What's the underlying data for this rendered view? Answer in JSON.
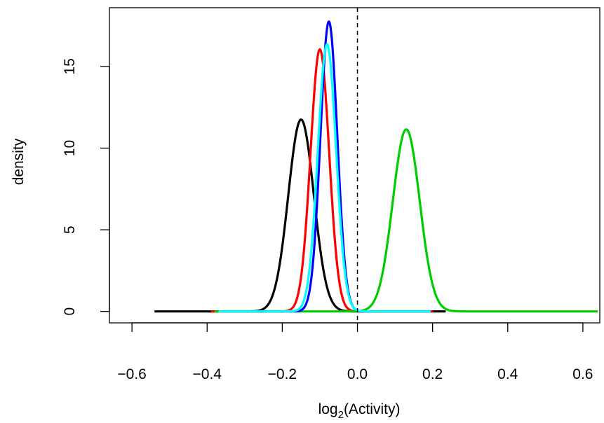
{
  "chart_data": {
    "type": "line",
    "title": "",
    "xlabel_base": "log",
    "xlabel_sub": "2",
    "xlabel_rest": "(Activity)",
    "ylabel": "density",
    "xlim": [
      -0.66,
      0.645
    ],
    "ylim": [
      -0.7,
      18.6
    ],
    "x_ticks": [
      -0.6,
      -0.4,
      -0.2,
      0.0,
      0.2,
      0.4,
      0.6
    ],
    "x_tick_labels": [
      "−0.6",
      "−0.4",
      "−0.2",
      "0.0",
      "0.2",
      "0.4",
      "0.6"
    ],
    "y_ticks": [
      0,
      5,
      10,
      15
    ],
    "y_tick_labels": [
      "0",
      "5",
      "10",
      "15"
    ],
    "reference_line": {
      "x": 0.0,
      "style": "dashed",
      "color": "#000000"
    },
    "grid": false,
    "legend": "none",
    "series": [
      {
        "color": "#000000",
        "mean": -0.15,
        "sd": 0.034,
        "peak": 11.75,
        "x_range": [
          -0.54,
          0.235
        ]
      },
      {
        "color": "#ff0000",
        "mean": -0.1,
        "sd": 0.0248,
        "peak": 16.05,
        "x_range": [
          -0.39,
          0.2
        ]
      },
      {
        "color": "#00cd00",
        "mean": 0.13,
        "sd": 0.0358,
        "peak": 11.15,
        "x_range": [
          -0.38,
          0.64
        ]
      },
      {
        "color": "#0000ff",
        "mean": -0.076,
        "sd": 0.0224,
        "peak": 17.75,
        "x_range": [
          -0.36,
          0.195
        ]
      },
      {
        "color": "#00ffff",
        "mean": -0.081,
        "sd": 0.0243,
        "peak": 16.35,
        "x_range": [
          -0.37,
          0.195
        ]
      }
    ]
  }
}
